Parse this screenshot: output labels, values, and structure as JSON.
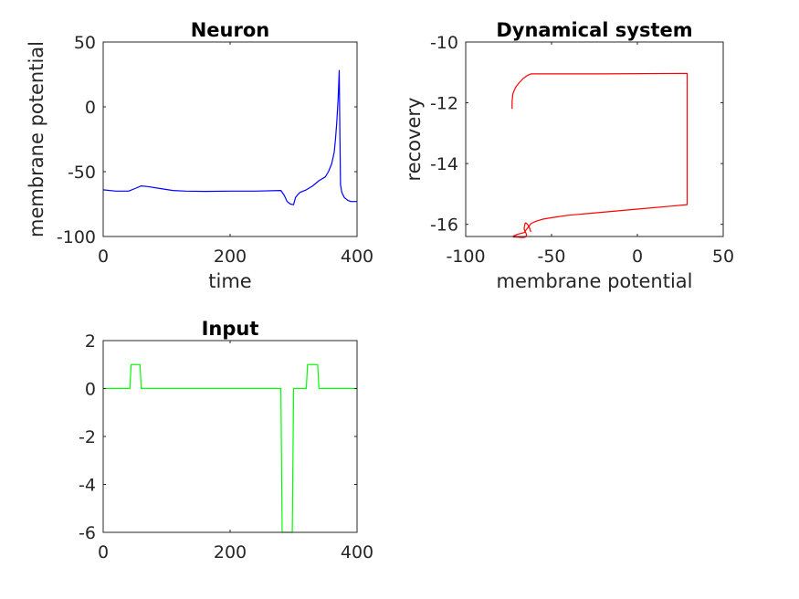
{
  "chart_data": [
    {
      "id": "neuron",
      "type": "line",
      "title": "Neuron",
      "xlabel": "time",
      "ylabel": "membrane potential",
      "xlim": [
        0,
        400
      ],
      "ylim": [
        -100,
        50
      ],
      "xticks": [
        0,
        200,
        400
      ],
      "yticks": [
        -100,
        -50,
        0,
        50
      ],
      "grid": false,
      "series": [
        {
          "color": "#0000ff",
          "x": [
            0,
            20,
            40,
            50,
            60,
            70,
            90,
            110,
            130,
            160,
            200,
            240,
            280,
            285,
            290,
            295,
            300,
            303,
            306,
            310,
            320,
            330,
            340,
            350,
            355,
            360,
            364,
            366,
            368,
            370,
            371,
            372,
            373,
            374,
            376,
            380,
            385,
            390,
            400
          ],
          "y": [
            -64,
            -65,
            -65,
            -63,
            -61,
            -61.5,
            -63,
            -64.5,
            -65,
            -65.2,
            -65,
            -65,
            -64.5,
            -68,
            -73,
            -75,
            -75.5,
            -70,
            -68,
            -66,
            -64,
            -61,
            -57,
            -54,
            -50,
            -44,
            -35,
            -25,
            -12,
            5,
            15,
            28,
            -20,
            -60,
            -66,
            -70,
            -72,
            -73,
            -73
          ]
        }
      ]
    },
    {
      "id": "dynamical-system",
      "type": "line",
      "title": "Dynamical system",
      "xlabel": "membrane potential",
      "ylabel": "recovery",
      "xlim": [
        -100,
        50
      ],
      "ylim": [
        -16.4,
        -10
      ],
      "xticks": [
        -100,
        -50,
        0,
        50
      ],
      "yticks": [
        -16,
        -14,
        -12,
        -10
      ],
      "grid": false,
      "series": [
        {
          "color": "#ff0000",
          "x": [
            -73,
            -73,
            -72.5,
            -71,
            -69,
            -66.5,
            -64,
            -62,
            -20,
            29,
            29,
            29,
            20,
            0,
            -20,
            -40,
            -50,
            -55,
            -58,
            -60,
            -62,
            -63,
            -64,
            -65,
            -66,
            -68,
            -70,
            -71,
            -72,
            -72.5,
            -72,
            -70,
            -68,
            -66,
            -65,
            -64.5,
            -65,
            -66,
            -65.5,
            -65,
            -64,
            -63,
            -62
          ],
          "y": [
            -12.2,
            -11.95,
            -11.7,
            -11.5,
            -11.35,
            -11.2,
            -11.1,
            -11.05,
            -11.05,
            -11.03,
            -13.2,
            -15.35,
            -15.4,
            -15.5,
            -15.6,
            -15.7,
            -15.78,
            -15.83,
            -15.88,
            -15.92,
            -15.98,
            -16.05,
            -16.12,
            -16.2,
            -16.27,
            -16.3,
            -16.33,
            -16.36,
            -16.38,
            -16.4,
            -16.42,
            -16.42,
            -16.43,
            -16.43,
            -16.41,
            -16.35,
            -16.28,
            -16.15,
            -15.98,
            -15.95,
            -16.0,
            -16.1,
            -16.25
          ]
        }
      ]
    },
    {
      "id": "input",
      "type": "line",
      "title": "Input",
      "xlabel": "",
      "ylabel": "",
      "xlim": [
        0,
        400
      ],
      "ylim": [
        -6,
        2
      ],
      "xticks": [
        0,
        200,
        400
      ],
      "yticks": [
        -6,
        -4,
        -2,
        0,
        2
      ],
      "grid": false,
      "series": [
        {
          "color": "#00ff00",
          "x": [
            0,
            42,
            44,
            58,
            60,
            280,
            282,
            298,
            300,
            320,
            322,
            338,
            340,
            400
          ],
          "y": [
            0,
            0,
            1,
            1,
            0,
            0,
            -6,
            -6,
            0,
            0,
            1,
            1,
            0,
            0
          ]
        }
      ]
    }
  ]
}
